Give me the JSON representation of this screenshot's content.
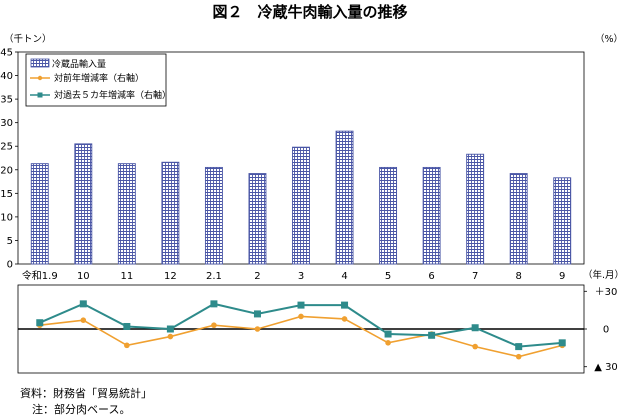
{
  "chart_data": [
    {
      "type": "bar",
      "title": "図２　冷蔵牛肉輸入量の推移",
      "ylabel": "（千トン）",
      "right_unit": "（%）",
      "x_unit": "（年.月）",
      "categories": [
        "令和1.9",
        "10",
        "11",
        "12",
        "2.1",
        "2",
        "3",
        "4",
        "5",
        "6",
        "7",
        "8",
        "9"
      ],
      "series": [
        {
          "name": "冷蔵品輸入量",
          "values": [
            21.3,
            25.5,
            21.3,
            21.6,
            20.5,
            19.2,
            24.8,
            28.2,
            20.5,
            20.5,
            23.3,
            19.2,
            18.3
          ],
          "color": "#4a56a6"
        }
      ],
      "ylim": [
        0,
        45
      ],
      "yticks": [
        0,
        5,
        10,
        15,
        20,
        25,
        30,
        35,
        40,
        45
      ],
      "legend": "top-left",
      "grid": false
    },
    {
      "type": "line",
      "categories": [
        "令和1.9",
        "10",
        "11",
        "12",
        "2.1",
        "2",
        "3",
        "4",
        "5",
        "6",
        "7",
        "8",
        "9"
      ],
      "series": [
        {
          "name": "対前年増減率（右軸）",
          "values": [
            3,
            7,
            -13,
            -6,
            3,
            0,
            10,
            8,
            -11,
            -4,
            -14,
            -22,
            -13
          ],
          "color": "#f0a030",
          "marker": "circle"
        },
        {
          "name": "対過去５カ年増減率（右軸）",
          "values": [
            5,
            20,
            2,
            0,
            20,
            12,
            19,
            19,
            -4,
            -5,
            1,
            -14,
            -11
          ],
          "color": "#2e8b8b",
          "marker": "square"
        }
      ],
      "ylim": [
        -35,
        35
      ],
      "ytick_labels": [
        "＋30",
        "0",
        "▲ 30"
      ],
      "yticks": [
        30,
        0,
        -30
      ]
    }
  ],
  "notes": {
    "source": "資料：財務省「貿易統計」",
    "note": "注：部分肉ベース。"
  }
}
